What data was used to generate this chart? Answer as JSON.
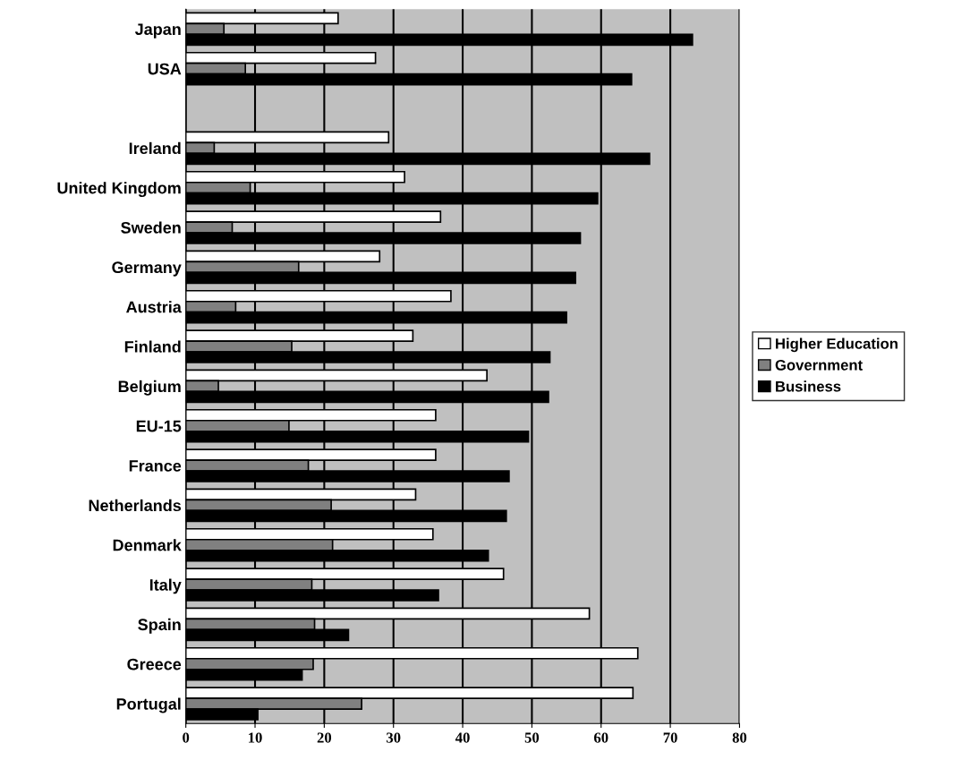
{
  "chart_data": {
    "type": "bar",
    "orientation": "horizontal",
    "categories": [
      "Japan",
      "USA",
      null,
      "Ireland",
      "United Kingdom",
      "Sweden",
      "Germany",
      "Austria",
      "Finland",
      "Belgium",
      "EU-15",
      "France",
      "Netherlands",
      "Denmark",
      "Italy",
      "Spain",
      "Greece",
      "Portugal"
    ],
    "series": [
      {
        "name": "Higher Education",
        "color": "#ffffff",
        "values": [
          22.0,
          27.4,
          null,
          29.3,
          31.6,
          36.8,
          28.0,
          38.3,
          32.8,
          43.5,
          36.1,
          36.1,
          33.2,
          35.7,
          45.9,
          58.3,
          65.3,
          64.6
        ]
      },
      {
        "name": "Government",
        "color": "#808080",
        "values": [
          5.5,
          8.6,
          null,
          4.1,
          9.3,
          6.7,
          16.3,
          7.2,
          15.3,
          4.7,
          14.9,
          17.7,
          21.0,
          21.2,
          18.2,
          18.6,
          18.4,
          25.4
        ]
      },
      {
        "name": "Business",
        "color": "#000000",
        "values": [
          73.2,
          64.4,
          null,
          67.0,
          59.5,
          57.0,
          56.3,
          55.0,
          52.6,
          52.4,
          49.5,
          46.7,
          46.3,
          43.7,
          36.5,
          23.5,
          16.8,
          10.4
        ]
      }
    ],
    "xlim": [
      0,
      80
    ],
    "xticks": [
      0,
      10,
      20,
      30,
      40,
      50,
      60,
      70,
      80
    ],
    "grid": "x",
    "legend": "right"
  }
}
